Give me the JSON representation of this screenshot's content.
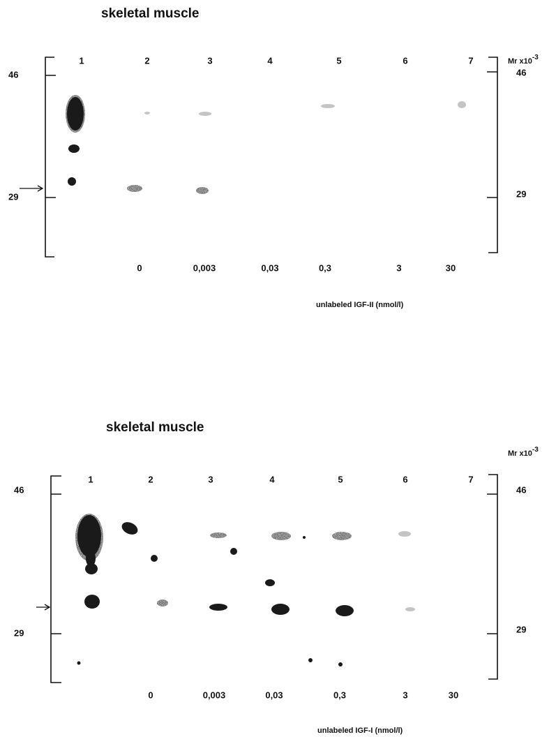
{
  "panels": [
    {
      "title": "skeletal muscle",
      "mr_label": "Mr x10",
      "mr_exponent": "-3",
      "lanes": [
        "1",
        "2",
        "3",
        "4",
        "5",
        "6",
        "7"
      ],
      "markers_left": [
        "46",
        "29"
      ],
      "markers_right": [
        "46",
        "29"
      ],
      "concentrations": [
        "0",
        "0,003",
        "0,03",
        "0,3",
        "3",
        "30"
      ],
      "xlabel": "unlabeled IGF-II (nmol/l)"
    },
    {
      "title": "skeletal muscle",
      "mr_label": "Mr x10",
      "mr_exponent": "-3",
      "lanes": [
        "1",
        "2",
        "3",
        "4",
        "5",
        "6",
        "7"
      ],
      "markers_left": [
        "46",
        "29"
      ],
      "markers_right": [
        "46",
        "29"
      ],
      "concentrations": [
        "0",
        "0,003",
        "0,03",
        "0,3",
        "3",
        "30"
      ],
      "xlabel": "unlabeled IGF-I (nmol/l)"
    }
  ]
}
